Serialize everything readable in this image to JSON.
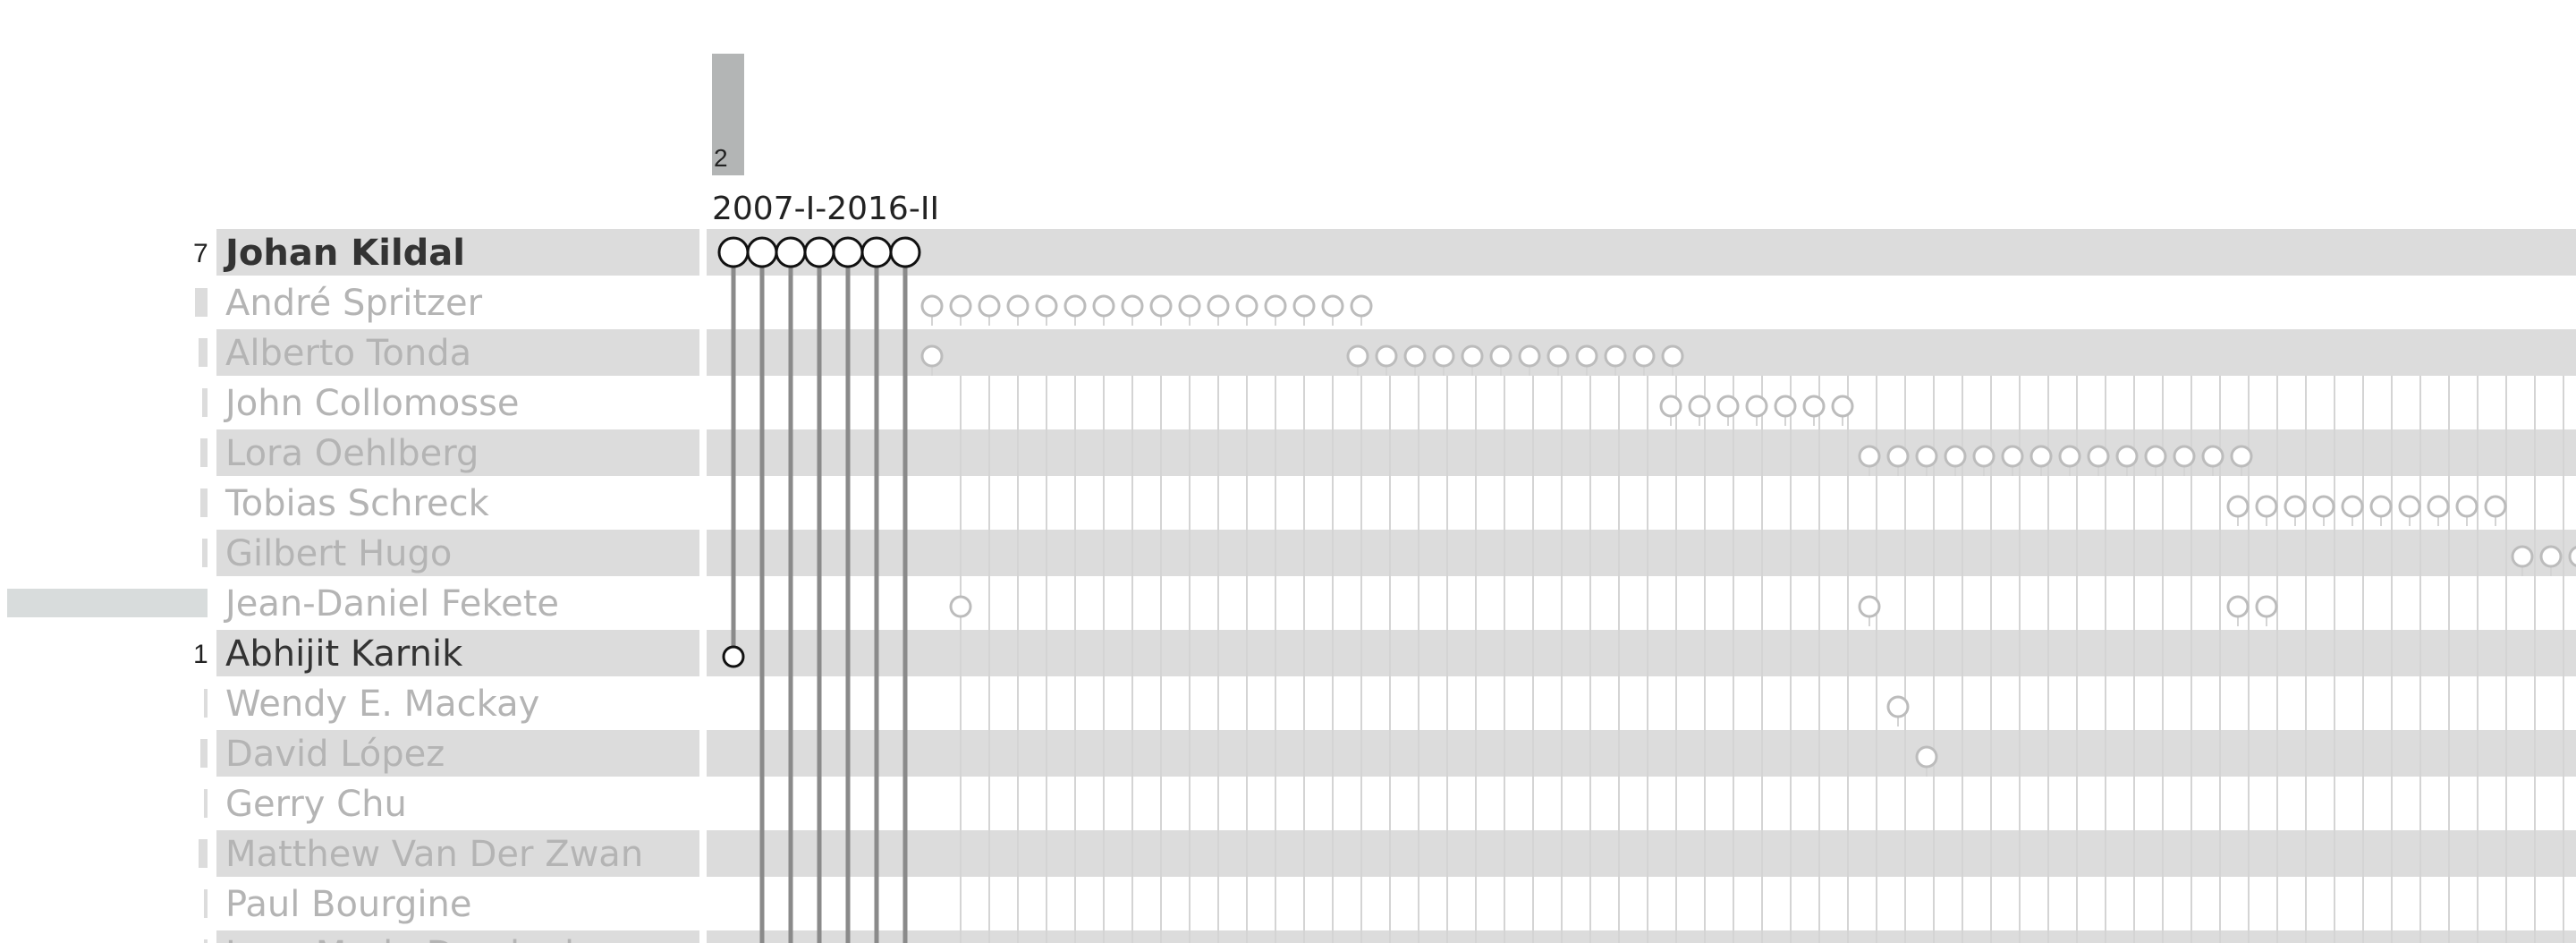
{
  "column_header": {
    "count": "2",
    "label": "2007-I-2016-II"
  },
  "authors": [
    {
      "name": "Johan Kildal",
      "count": "7",
      "focus": true
    },
    {
      "name": "André Spritzer",
      "count": "",
      "focus": false
    },
    {
      "name": "Alberto Tonda",
      "count": "",
      "focus": false
    },
    {
      "name": "John Collomosse",
      "count": "",
      "focus": false
    },
    {
      "name": "Lora Oehlberg",
      "count": "",
      "focus": false
    },
    {
      "name": "Tobias Schreck",
      "count": "",
      "focus": false
    },
    {
      "name": "Gilbert Hugo",
      "count": "",
      "focus": false
    },
    {
      "name": "Jean-Daniel Fekete",
      "count": "",
      "focus": false
    },
    {
      "name": "Abhijit Karnik",
      "count": "1",
      "focus": "active"
    },
    {
      "name": "Wendy E. Mackay",
      "count": "",
      "focus": false
    },
    {
      "name": "David López",
      "count": "",
      "focus": false
    },
    {
      "name": "Gerry Chu",
      "count": "",
      "focus": false
    },
    {
      "name": "Matthew Van Der Zwan",
      "count": "",
      "focus": false
    },
    {
      "name": "Paul Bourgine",
      "count": "",
      "focus": false
    },
    {
      "name": "Jean-Marie Dusriouin",
      "count": "",
      "focus": false
    }
  ],
  "colors": {
    "band": "#dcdcdc",
    "faded_text": "#b4b4b4",
    "focus_text": "#333333",
    "line": "#8a8a8a",
    "tick": "#d4d4d4",
    "header_bar": "#b3b5b5",
    "side_bar": "#d8dcdc"
  }
}
